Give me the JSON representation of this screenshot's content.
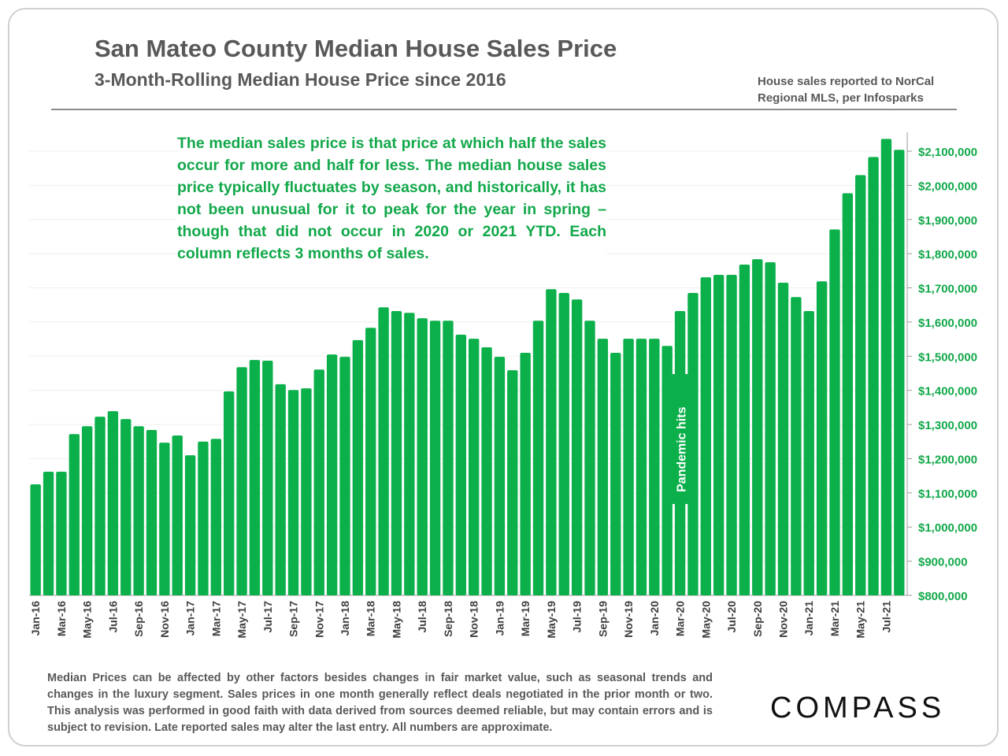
{
  "title": "San Mateo County Median House Sales Price",
  "subtitle": "3-Month-Rolling Median House Price since 2016",
  "source_note": "House sales reported to NorCal Regional MLS, per Infosparks",
  "annotation": "The median sales price is that price at which half the sales occur for more and half for less. The median house sales price typically fluctuates by season, and historically, it has not been unusual for it to peak for the year in spring – though that did not occur in 2020 or 2021 YTD. Each column reflects 3 months of sales.",
  "footnote": "Median Prices can be affected by other factors besides changes in fair market value, such as seasonal trends and changes in the luxury segment. Sales prices in one month generally reflect deals negotiated in the prior month or two. This analysis was performed in good faith with data derived from sources deemed reliable, but may contain errors and is subject to revision. Late reported sales may alter the last entry. All numbers are approximate.",
  "logo": "COMPASS",
  "colors": {
    "bar": "#0bb04b",
    "text": "#595959",
    "annotation": "#12a84a"
  },
  "chart_data": {
    "type": "bar",
    "title": "San Mateo County Median House Sales Price",
    "ylim": [
      800000,
      2150000
    ],
    "yticks": [
      800000,
      900000,
      1000000,
      1100000,
      1200000,
      1300000,
      1400000,
      1500000,
      1600000,
      1700000,
      1800000,
      1900000,
      2000000,
      2100000
    ],
    "ytick_labels": [
      "$800,000",
      "$900,000",
      "$1,000,000",
      "$1,100,000",
      "$1,200,000",
      "$1,300,000",
      "$1,400,000",
      "$1,500,000",
      "$1,600,000",
      "$1,700,000",
      "$1,800,000",
      "$1,900,000",
      "$2,000,000",
      "$2,100,000"
    ],
    "y_axis_position": "right",
    "grid": true,
    "categories": [
      "Jan-16",
      "Feb-16",
      "Mar-16",
      "Apr-16",
      "May-16",
      "Jun-16",
      "Jul-16",
      "Aug-16",
      "Sep-16",
      "Oct-16",
      "Nov-16",
      "Dec-16",
      "Jan-17",
      "Feb-17",
      "Mar-17",
      "Apr-17",
      "May-17",
      "Jun-17",
      "Jul-17",
      "Aug-17",
      "Sep-17",
      "Oct-17",
      "Nov-17",
      "Dec-17",
      "Jan-18",
      "Feb-18",
      "Mar-18",
      "Apr-18",
      "May-18",
      "Jun-18",
      "Jul-18",
      "Aug-18",
      "Sep-18",
      "Oct-18",
      "Nov-18",
      "Dec-18",
      "Jan-19",
      "Feb-19",
      "Mar-19",
      "Apr-19",
      "May-19",
      "Jun-19",
      "Jul-19",
      "Aug-19",
      "Sep-19",
      "Oct-19",
      "Nov-19",
      "Dec-19",
      "Jan-20",
      "Feb-20",
      "Mar-20",
      "Apr-20",
      "May-20",
      "Jun-20",
      "Jul-20",
      "Aug-20",
      "Sep-20",
      "Oct-20",
      "Nov-20",
      "Dec-20",
      "Jan-21",
      "Feb-21",
      "Mar-21",
      "Apr-21",
      "May-21",
      "Jun-21",
      "Jul-21",
      "Aug-21"
    ],
    "xtick_labels_every": 2,
    "values": [
      1125000,
      1162000,
      1162000,
      1272000,
      1295000,
      1323000,
      1339000,
      1316000,
      1295000,
      1284000,
      1247000,
      1268000,
      1210000,
      1250000,
      1258000,
      1397000,
      1468000,
      1489000,
      1487000,
      1418000,
      1401000,
      1406000,
      1461000,
      1505000,
      1498000,
      1547000,
      1583000,
      1643000,
      1632000,
      1627000,
      1611000,
      1604000,
      1604000,
      1563000,
      1551000,
      1526000,
      1498000,
      1459000,
      1510000,
      1604000,
      1696000,
      1685000,
      1666000,
      1604000,
      1551000,
      1510000,
      1551000,
      1551000,
      1551000,
      1530000,
      1632000,
      1685000,
      1731000,
      1738000,
      1738000,
      1768000,
      1784000,
      1775000,
      1715000,
      1673000,
      1632000,
      1719000,
      1871000,
      1977000,
      2030000,
      2083000,
      2136000,
      2104000
    ],
    "event_label": "Pandemic hits",
    "event_category": "Mar-20"
  }
}
